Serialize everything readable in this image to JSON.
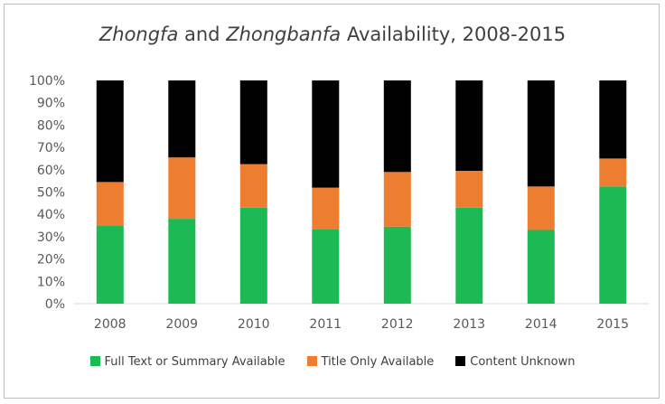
{
  "chart_data": {
    "type": "bar",
    "stacked": true,
    "title_parts": {
      "part1": "Zhongfa",
      "part2": " and ",
      "part3": "Zhongbanfa",
      "part4": " Availability, 2008-2015"
    },
    "categories": [
      "2008",
      "2009",
      "2010",
      "2011",
      "2012",
      "2013",
      "2014",
      "2015"
    ],
    "series": [
      {
        "name": "Full Text or Summary Available",
        "color": "#1db954",
        "values": [
          35,
          38,
          43,
          33.5,
          34.5,
          43,
          33,
          52.5
        ]
      },
      {
        "name": "Title Only Available",
        "color": "#ed7d31",
        "values": [
          19.5,
          27.5,
          19.5,
          18.5,
          24.5,
          16.5,
          19.5,
          12.5
        ]
      },
      {
        "name": "Content Unknown",
        "color": "#000000",
        "values": [
          45.5,
          34.5,
          37.5,
          48,
          41,
          40.5,
          47.5,
          35
        ]
      }
    ],
    "ylim": [
      0,
      100
    ],
    "yticks": [
      "0%",
      "10%",
      "20%",
      "30%",
      "40%",
      "50%",
      "60%",
      "70%",
      "80%",
      "90%",
      "100%"
    ],
    "grid": false,
    "legend_position": "bottom"
  }
}
